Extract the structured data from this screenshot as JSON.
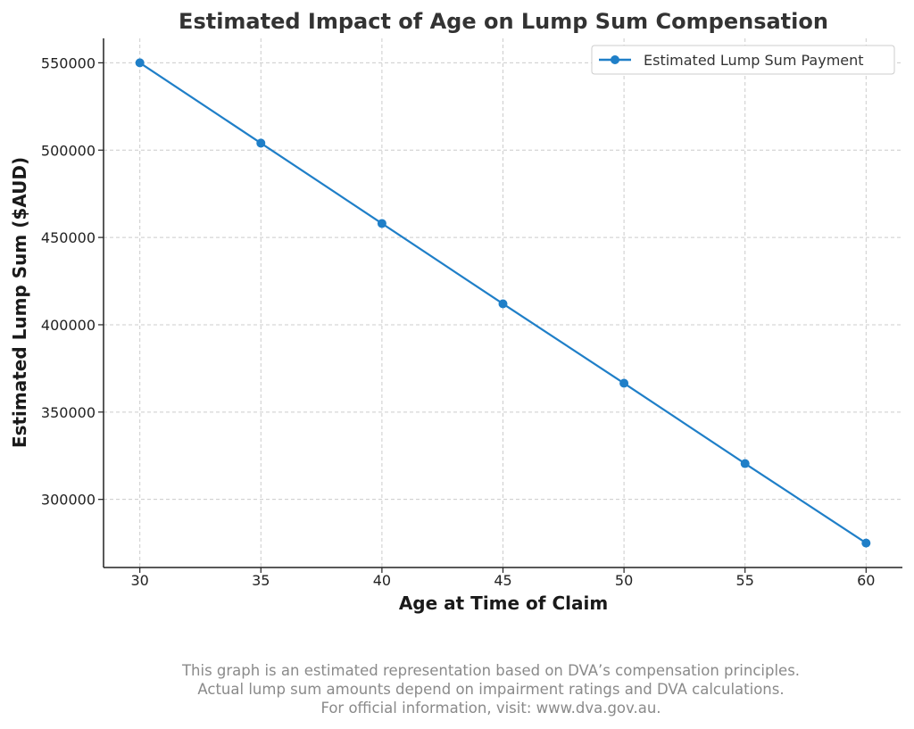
{
  "chart_data": {
    "type": "line",
    "title": "Estimated Impact of Age on Lump Sum Compensation",
    "xlabel": "Age at Time of Claim",
    "ylabel": "Estimated Lump Sum ($AUD)",
    "x": [
      30,
      35,
      40,
      45,
      50,
      55,
      60
    ],
    "series": [
      {
        "name": "Estimated Lump Sum Payment",
        "color": "#1f7fc8",
        "values": [
          550000,
          504000,
          458000,
          412000,
          366500,
          320500,
          275000
        ]
      }
    ],
    "xticks": [
      "30",
      "35",
      "40",
      "45",
      "50",
      "55",
      "60"
    ],
    "yticks": [
      "300000",
      "350000",
      "400000",
      "450000",
      "500000",
      "550000"
    ],
    "xlim": [
      28.5,
      61.5
    ],
    "ylim": [
      261000,
      564000
    ],
    "grid": true,
    "legend_position": "top-right"
  },
  "footnote": {
    "line1": "This graph is an estimated representation based on DVA’s compensation principles.",
    "line2": "Actual lump sum amounts depend on impairment ratings and DVA calculations.",
    "line3": "For official information, visit: www.dva.gov.au."
  }
}
